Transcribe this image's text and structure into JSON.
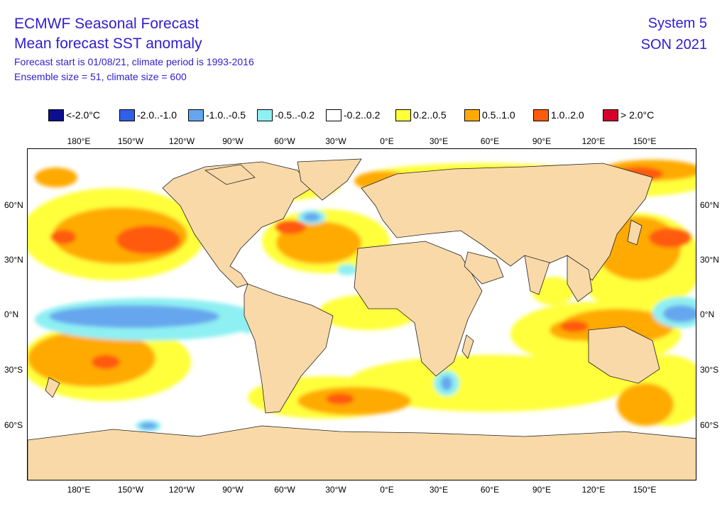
{
  "header": {
    "title": "ECMWF Seasonal Forecast",
    "subtitle": "Mean forecast SST anomaly",
    "info_line1": "Forecast start is 01/08/21, climate period is 1993-2016",
    "info_line2": "Ensemble size = 51, climate size = 600",
    "system": "System 5",
    "season": "SON 2021"
  },
  "legend": [
    {
      "label": "<-2.0°C",
      "color": "#0b0f8f"
    },
    {
      "label": "-2.0..-1.0",
      "color": "#3160e8"
    },
    {
      "label": "-1.0..-0.5",
      "color": "#66a6ee"
    },
    {
      "label": "-0.5..-0.2",
      "color": "#8ef0f2"
    },
    {
      "label": "-0.2..0.2",
      "color": "#ffffff"
    },
    {
      "label": "0.2..0.5",
      "color": "#ffff3b"
    },
    {
      "label": "0.5..1.0",
      "color": "#ffaa06"
    },
    {
      "label": "1.0..2.0",
      "color": "#ff5a0f"
    },
    {
      "label": "> 2.0°C",
      "color": "#d6002a"
    }
  ],
  "colors": {
    "land": "#f9d9a8",
    "coast": "#222222"
  },
  "axes": {
    "lon_labels": [
      "180°E",
      "150°W",
      "120°W",
      "90°W",
      "60°W",
      "30°W",
      "0°E",
      "30°E",
      "60°E",
      "90°E",
      "120°E",
      "150°E"
    ],
    "lat_labels": [
      "60°N",
      "30°N",
      "0°N",
      "30°S",
      "60°S"
    ]
  }
}
